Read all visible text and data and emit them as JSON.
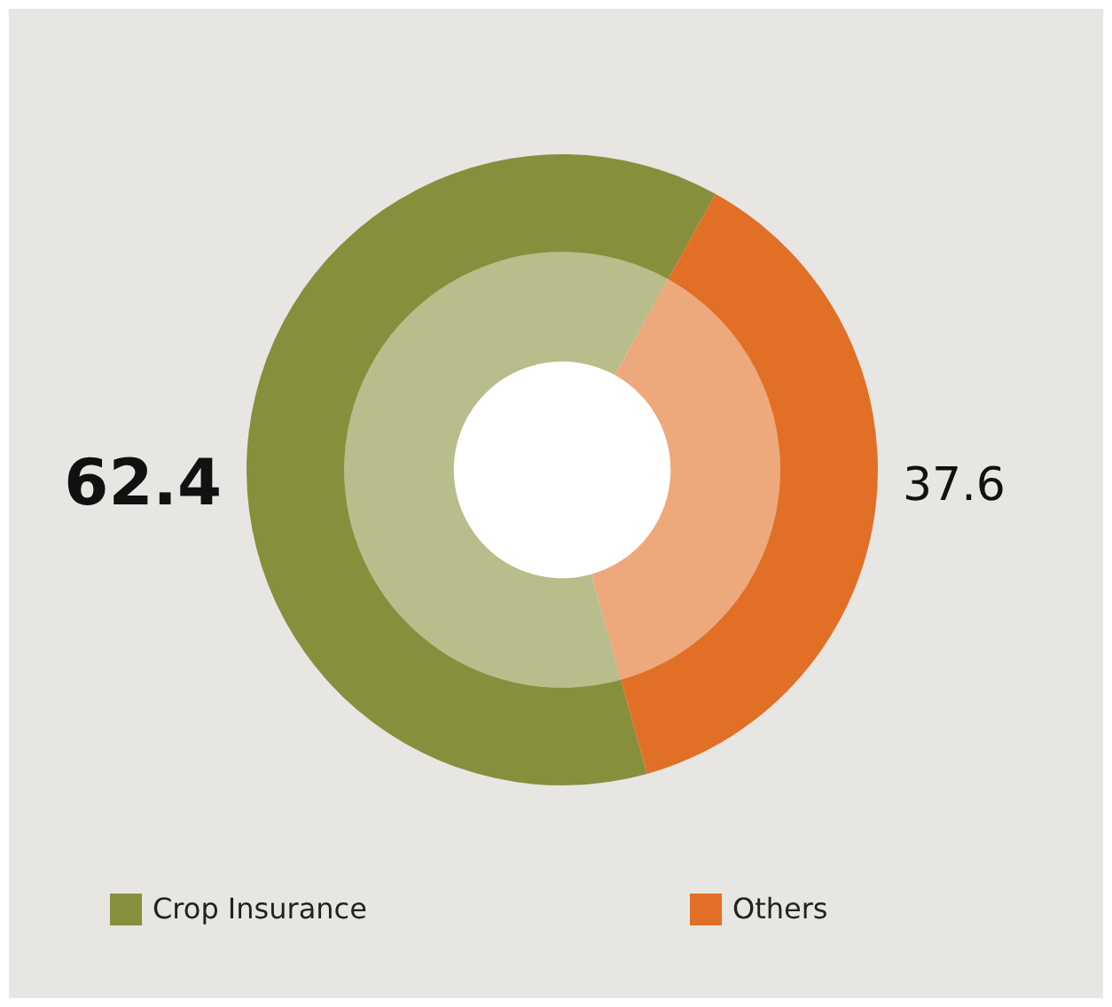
{
  "chart_data": {
    "type": "donut",
    "categories": [
      "Crop Insurance",
      "Others"
    ],
    "series": [
      {
        "values": [
          62.4,
          37.6
        ],
        "value_labels": [
          "62.4",
          "37.6"
        ],
        "colors": [
          "#878f3c",
          "#e26f26"
        ]
      },
      {
        "values": [
          62.4,
          37.6
        ],
        "colors": [
          "#b9bd8b",
          "#eda87c"
        ]
      }
    ],
    "legend": "bottom"
  }
}
